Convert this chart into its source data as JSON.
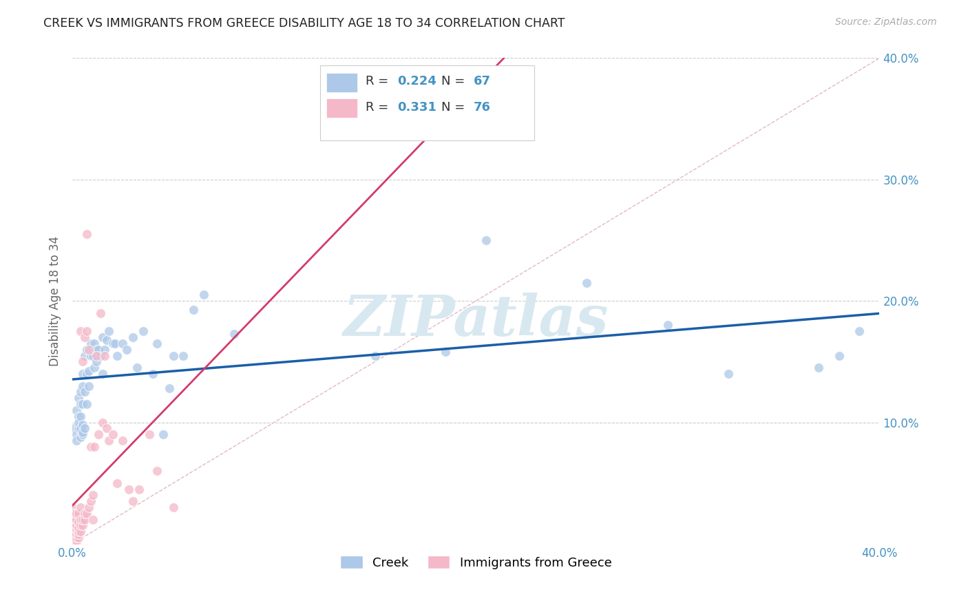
{
  "title": "CREEK VS IMMIGRANTS FROM GREECE DISABILITY AGE 18 TO 34 CORRELATION CHART",
  "source": "Source: ZipAtlas.com",
  "ylabel": "Disability Age 18 to 34",
  "xlim": [
    0.0,
    0.4
  ],
  "ylim": [
    0.0,
    0.4
  ],
  "creek_R": 0.224,
  "creek_N": 67,
  "greece_R": 0.331,
  "greece_N": 76,
  "creek_color": "#adc8e8",
  "greece_color": "#f4b8c8",
  "trend_creek_color": "#1a5fa8",
  "trend_greece_color": "#d43a6a",
  "diagonal_color": "#cccccc",
  "watermark": "ZIPatlas",
  "tick_color": "#4393c3",
  "label_color": "#666666",
  "bg_color": "#ffffff",
  "grid_color": "#cccccc",
  "creek_x": [
    0.001,
    0.002,
    0.002,
    0.002,
    0.003,
    0.003,
    0.003,
    0.003,
    0.004,
    0.004,
    0.004,
    0.004,
    0.004,
    0.005,
    0.005,
    0.005,
    0.005,
    0.005,
    0.005,
    0.006,
    0.006,
    0.006,
    0.007,
    0.007,
    0.007,
    0.008,
    0.008,
    0.009,
    0.009,
    0.01,
    0.011,
    0.011,
    0.012,
    0.012,
    0.013,
    0.014,
    0.015,
    0.015,
    0.016,
    0.017,
    0.018,
    0.02,
    0.021,
    0.022,
    0.025,
    0.027,
    0.03,
    0.032,
    0.035,
    0.04,
    0.042,
    0.045,
    0.048,
    0.05,
    0.055,
    0.06,
    0.065,
    0.08,
    0.15,
    0.185,
    0.205,
    0.255,
    0.295,
    0.325,
    0.37,
    0.38,
    0.39
  ],
  "creek_y": [
    0.095,
    0.09,
    0.085,
    0.11,
    0.095,
    0.105,
    0.1,
    0.12,
    0.088,
    0.095,
    0.105,
    0.115,
    0.125,
    0.09,
    0.098,
    0.092,
    0.115,
    0.13,
    0.14,
    0.095,
    0.125,
    0.155,
    0.115,
    0.14,
    0.16,
    0.142,
    0.13,
    0.165,
    0.155,
    0.155,
    0.145,
    0.165,
    0.15,
    0.16,
    0.16,
    0.155,
    0.17,
    0.14,
    0.16,
    0.168,
    0.175,
    0.165,
    0.165,
    0.155,
    0.165,
    0.16,
    0.17,
    0.145,
    0.175,
    0.14,
    0.165,
    0.09,
    0.128,
    0.155,
    0.155,
    0.193,
    0.205,
    0.173,
    0.155,
    0.158,
    0.25,
    0.215,
    0.18,
    0.14,
    0.145,
    0.155,
    0.175
  ],
  "greece_x": [
    0.0,
    0.0,
    0.0,
    0.0,
    0.0,
    0.0,
    0.0,
    0.0,
    0.0,
    0.0,
    0.0,
    0.0,
    0.0,
    0.0,
    0.0,
    0.001,
    0.001,
    0.001,
    0.001,
    0.001,
    0.001,
    0.001,
    0.001,
    0.001,
    0.001,
    0.002,
    0.002,
    0.002,
    0.002,
    0.002,
    0.002,
    0.002,
    0.002,
    0.003,
    0.003,
    0.003,
    0.003,
    0.003,
    0.003,
    0.004,
    0.004,
    0.004,
    0.004,
    0.004,
    0.005,
    0.005,
    0.005,
    0.006,
    0.006,
    0.006,
    0.007,
    0.007,
    0.007,
    0.008,
    0.008,
    0.009,
    0.009,
    0.01,
    0.01,
    0.011,
    0.012,
    0.013,
    0.014,
    0.015,
    0.016,
    0.017,
    0.018,
    0.02,
    0.022,
    0.025,
    0.028,
    0.03,
    0.033,
    0.038,
    0.042,
    0.05
  ],
  "greece_y": [
    0.0,
    0.0,
    0.0,
    0.0,
    0.003,
    0.005,
    0.007,
    0.008,
    0.01,
    0.012,
    0.015,
    0.018,
    0.02,
    0.025,
    0.03,
    0.0,
    0.003,
    0.005,
    0.007,
    0.01,
    0.012,
    0.015,
    0.018,
    0.02,
    0.025,
    0.0,
    0.003,
    0.005,
    0.008,
    0.012,
    0.015,
    0.02,
    0.025,
    0.005,
    0.008,
    0.01,
    0.013,
    0.018,
    0.025,
    0.01,
    0.015,
    0.02,
    0.03,
    0.175,
    0.015,
    0.02,
    0.15,
    0.02,
    0.025,
    0.17,
    0.025,
    0.175,
    0.255,
    0.03,
    0.16,
    0.035,
    0.08,
    0.04,
    0.02,
    0.08,
    0.155,
    0.09,
    0.19,
    0.1,
    0.155,
    0.095,
    0.085,
    0.09,
    0.05,
    0.085,
    0.045,
    0.035,
    0.045,
    0.09,
    0.06,
    0.03
  ]
}
